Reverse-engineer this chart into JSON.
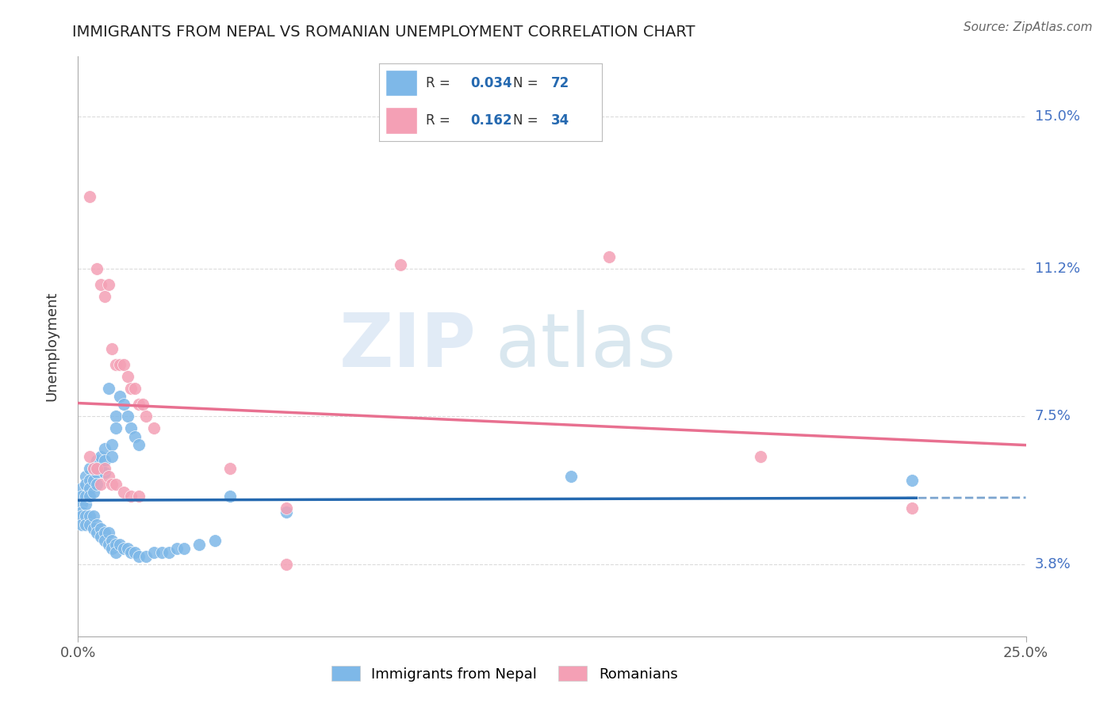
{
  "title": "IMMIGRANTS FROM NEPAL VS ROMANIAN UNEMPLOYMENT CORRELATION CHART",
  "source": "Source: ZipAtlas.com",
  "ylabel": "Unemployment",
  "xlim": [
    0.0,
    0.25
  ],
  "ylim": [
    0.02,
    0.165
  ],
  "yticks": [
    0.038,
    0.075,
    0.112,
    0.15
  ],
  "ytick_labels": [
    "3.8%",
    "7.5%",
    "11.2%",
    "15.0%"
  ],
  "legend_nepal": {
    "R": "0.034",
    "N": "72"
  },
  "legend_romanian": {
    "R": "0.162",
    "N": "34"
  },
  "nepal_color": "#7eb8e8",
  "romanian_color": "#f4a0b5",
  "nepal_line_color": "#2569b0",
  "romanian_line_color": "#e87090",
  "nepal_scatter": [
    [
      0.001,
      0.057
    ],
    [
      0.001,
      0.055
    ],
    [
      0.001,
      0.053
    ],
    [
      0.001,
      0.051
    ],
    [
      0.002,
      0.06
    ],
    [
      0.002,
      0.058
    ],
    [
      0.002,
      0.055
    ],
    [
      0.002,
      0.053
    ],
    [
      0.003,
      0.062
    ],
    [
      0.003,
      0.059
    ],
    [
      0.003,
      0.057
    ],
    [
      0.003,
      0.055
    ],
    [
      0.004,
      0.062
    ],
    [
      0.004,
      0.059
    ],
    [
      0.004,
      0.056
    ],
    [
      0.005,
      0.064
    ],
    [
      0.005,
      0.061
    ],
    [
      0.005,
      0.058
    ],
    [
      0.006,
      0.065
    ],
    [
      0.006,
      0.062
    ],
    [
      0.007,
      0.067
    ],
    [
      0.007,
      0.064
    ],
    [
      0.007,
      0.061
    ],
    [
      0.008,
      0.082
    ],
    [
      0.009,
      0.068
    ],
    [
      0.009,
      0.065
    ],
    [
      0.01,
      0.075
    ],
    [
      0.01,
      0.072
    ],
    [
      0.011,
      0.08
    ],
    [
      0.012,
      0.078
    ],
    [
      0.013,
      0.075
    ],
    [
      0.014,
      0.072
    ],
    [
      0.015,
      0.07
    ],
    [
      0.016,
      0.068
    ],
    [
      0.001,
      0.05
    ],
    [
      0.001,
      0.048
    ],
    [
      0.002,
      0.05
    ],
    [
      0.002,
      0.048
    ],
    [
      0.003,
      0.05
    ],
    [
      0.003,
      0.048
    ],
    [
      0.004,
      0.05
    ],
    [
      0.004,
      0.047
    ],
    [
      0.005,
      0.048
    ],
    [
      0.005,
      0.046
    ],
    [
      0.006,
      0.047
    ],
    [
      0.006,
      0.045
    ],
    [
      0.007,
      0.046
    ],
    [
      0.007,
      0.044
    ],
    [
      0.008,
      0.046
    ],
    [
      0.008,
      0.043
    ],
    [
      0.009,
      0.044
    ],
    [
      0.009,
      0.042
    ],
    [
      0.01,
      0.043
    ],
    [
      0.01,
      0.041
    ],
    [
      0.011,
      0.043
    ],
    [
      0.012,
      0.042
    ],
    [
      0.013,
      0.042
    ],
    [
      0.014,
      0.041
    ],
    [
      0.015,
      0.041
    ],
    [
      0.016,
      0.04
    ],
    [
      0.018,
      0.04
    ],
    [
      0.02,
      0.041
    ],
    [
      0.022,
      0.041
    ],
    [
      0.024,
      0.041
    ],
    [
      0.026,
      0.042
    ],
    [
      0.028,
      0.042
    ],
    [
      0.032,
      0.043
    ],
    [
      0.036,
      0.044
    ],
    [
      0.04,
      0.055
    ],
    [
      0.055,
      0.051
    ],
    [
      0.13,
      0.06
    ],
    [
      0.22,
      0.059
    ]
  ],
  "romanian_scatter": [
    [
      0.003,
      0.13
    ],
    [
      0.005,
      0.112
    ],
    [
      0.006,
      0.108
    ],
    [
      0.007,
      0.105
    ],
    [
      0.008,
      0.108
    ],
    [
      0.009,
      0.092
    ],
    [
      0.01,
      0.088
    ],
    [
      0.011,
      0.088
    ],
    [
      0.012,
      0.088
    ],
    [
      0.013,
      0.085
    ],
    [
      0.014,
      0.082
    ],
    [
      0.015,
      0.082
    ],
    [
      0.016,
      0.078
    ],
    [
      0.017,
      0.078
    ],
    [
      0.018,
      0.075
    ],
    [
      0.02,
      0.072
    ],
    [
      0.003,
      0.065
    ],
    [
      0.004,
      0.062
    ],
    [
      0.005,
      0.062
    ],
    [
      0.006,
      0.058
    ],
    [
      0.007,
      0.062
    ],
    [
      0.008,
      0.06
    ],
    [
      0.009,
      0.058
    ],
    [
      0.01,
      0.058
    ],
    [
      0.012,
      0.056
    ],
    [
      0.014,
      0.055
    ],
    [
      0.016,
      0.055
    ],
    [
      0.04,
      0.062
    ],
    [
      0.055,
      0.052
    ],
    [
      0.085,
      0.113
    ],
    [
      0.14,
      0.115
    ],
    [
      0.18,
      0.065
    ],
    [
      0.22,
      0.052
    ],
    [
      0.055,
      0.038
    ]
  ],
  "watermark_zip": "ZIP",
  "watermark_atlas": "atlas",
  "background_color": "#ffffff",
  "grid_color": "#cccccc"
}
